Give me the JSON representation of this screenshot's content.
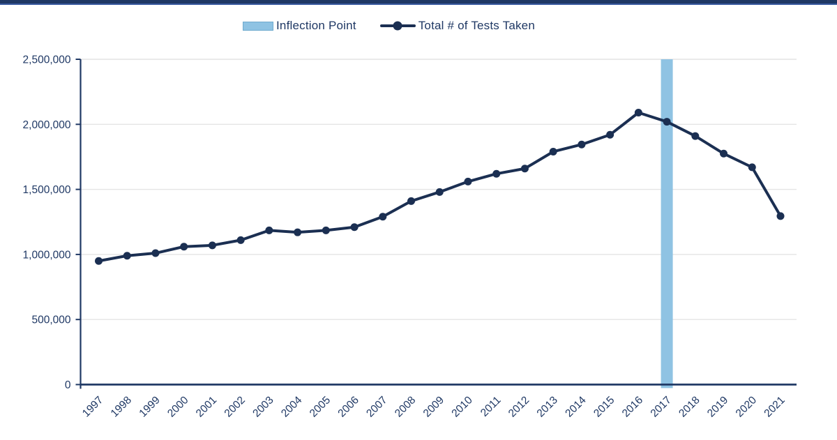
{
  "top_bar": {
    "color": "#1F3864"
  },
  "chart_data": {
    "type": "line",
    "title": "",
    "xlabel": "",
    "ylabel": "",
    "x": [
      "1997",
      "1998",
      "1999",
      "2000",
      "2001",
      "2002",
      "2003",
      "2004",
      "2005",
      "2006",
      "2007",
      "2008",
      "2009",
      "2010",
      "2011",
      "2012",
      "2013",
      "2014",
      "2015",
      "2016",
      "2017",
      "2018",
      "2019",
      "2020",
      "2021"
    ],
    "series": [
      {
        "name": "Total # of Tests Taken",
        "values": [
          950000,
          990000,
          1010000,
          1060000,
          1070000,
          1110000,
          1185000,
          1170000,
          1185000,
          1210000,
          1290000,
          1410000,
          1480000,
          1560000,
          1620000,
          1660000,
          1790000,
          1845000,
          1920000,
          2090000,
          2020000,
          1910000,
          1775000,
          1670000,
          1295000
        ]
      }
    ],
    "ylim": [
      0,
      2500000
    ],
    "yticks": [
      {
        "value": 0,
        "label": "0"
      },
      {
        "value": 500000,
        "label": "500,000"
      },
      {
        "value": 1000000,
        "label": "1,000,000"
      },
      {
        "value": 1500000,
        "label": "1,500,000"
      },
      {
        "value": 2000000,
        "label": "2,000,000"
      },
      {
        "value": 2500000,
        "label": "2,500,000"
      }
    ],
    "grid": "horizontal",
    "legend_position": "top-center",
    "legend": [
      {
        "label": "Inflection Point",
        "swatch": "box"
      },
      {
        "label": "Total # of Tests Taken",
        "swatch": "line-marker"
      }
    ],
    "inflection": {
      "year": "2017",
      "label": "Inflection Point"
    },
    "colors": {
      "line": "#1B2F52",
      "marker": "#1B2F52",
      "inflection_band": "#8FC3E3",
      "gridline": "#E4E4E4",
      "axis": "#1F3864",
      "tick_text": "#1F3864",
      "top_bar": "#1F3864"
    }
  }
}
